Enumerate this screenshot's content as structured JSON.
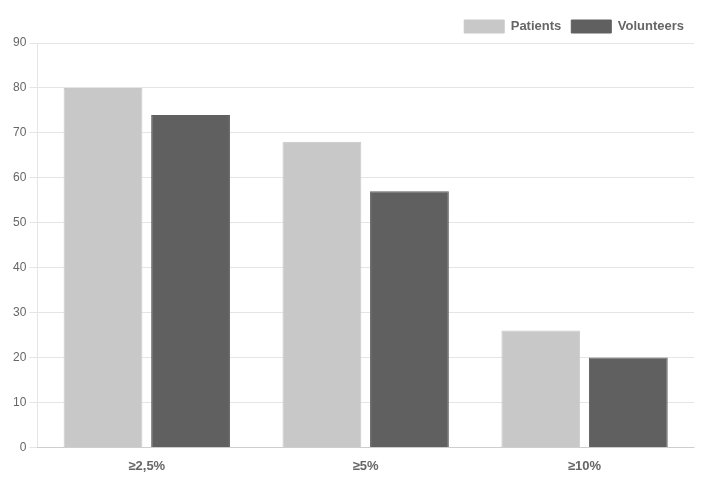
{
  "chart_data": {
    "type": "bar",
    "categories": [
      "≥2,5%",
      "≥5%",
      "≥10%"
    ],
    "series": [
      {
        "name": "Patients",
        "color": "#c8c8c8",
        "values": [
          80,
          68,
          26
        ]
      },
      {
        "name": "Volunteers",
        "color": "#606060",
        "values": [
          74,
          57,
          20
        ]
      }
    ],
    "ylim": [
      0,
      90
    ],
    "yticks": [
      0,
      10,
      20,
      30,
      40,
      50,
      60,
      70,
      80,
      90
    ],
    "grid": true,
    "legend": "upper right"
  }
}
